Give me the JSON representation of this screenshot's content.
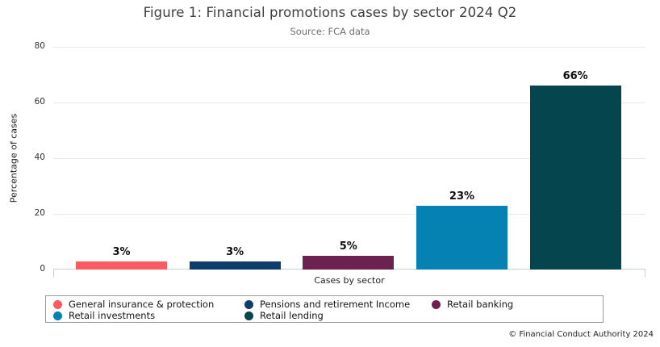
{
  "page": {
    "footer": "© Financial Conduct Authority 2024"
  },
  "chart_data": {
    "type": "bar",
    "title": "Figure 1: Financial promotions cases by sector 2024 Q2",
    "subtitle": "Source: FCA data",
    "xlabel": "Cases by sector",
    "ylabel": "Percentage of cases",
    "ylim": [
      0,
      80
    ],
    "yticks": [
      0,
      20,
      40,
      60,
      80
    ],
    "grid": true,
    "legend_position": "bottom",
    "categories": [
      "General insurance & protection",
      "Pensions and retirement Income",
      "Retail banking",
      "Retail investments",
      "Retail lending"
    ],
    "values": [
      3,
      3,
      5,
      23,
      66
    ],
    "bar_labels": [
      "3%",
      "3%",
      "5%",
      "23%",
      "66%"
    ],
    "colors": [
      "#FA5A61",
      "#0E3D6B",
      "#6C2150",
      "#0682B2",
      "#05464E"
    ],
    "legend": [
      {
        "label": "General insurance & protection",
        "color": "#FA5A61"
      },
      {
        "label": "Pensions and retirement Income",
        "color": "#0E3D6B"
      },
      {
        "label": "Retail banking",
        "color": "#6C2150"
      },
      {
        "label": "Retail investments",
        "color": "#0682B2"
      },
      {
        "label": "Retail lending",
        "color": "#05464E"
      }
    ]
  }
}
